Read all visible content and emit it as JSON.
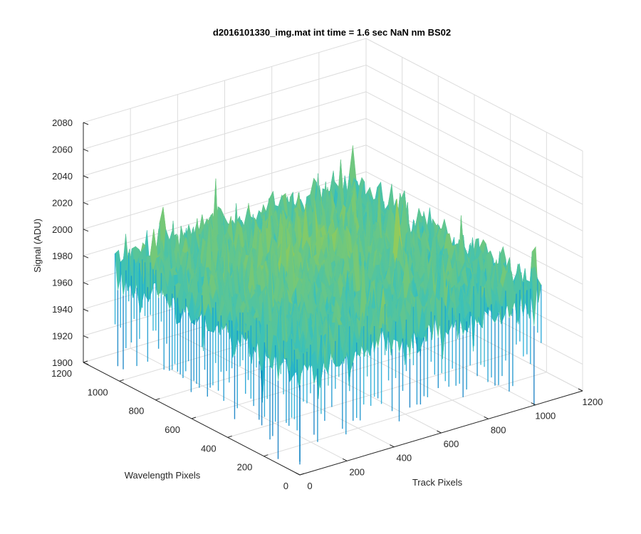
{
  "chart_data": {
    "type": "surface",
    "title": "d2016101330_img.mat int time = 1.6 sec  NaN nm BS02",
    "xlabel": "Track Pixels",
    "ylabel": "Wavelength Pixels",
    "zlabel": "Signal (ADU)",
    "xlim": [
      0,
      1200
    ],
    "ylim": [
      0,
      1200
    ],
    "zlim": [
      1900,
      2080
    ],
    "xticks": [
      "0",
      "200",
      "400",
      "600",
      "800",
      "1000",
      "1200"
    ],
    "yticks": [
      "0",
      "200",
      "400",
      "600",
      "800",
      "1000",
      "1200"
    ],
    "zticks": [
      "1900",
      "1920",
      "1940",
      "1960",
      "1980",
      "2000",
      "2020",
      "2040",
      "2060",
      "2080"
    ],
    "data_extent": {
      "x": [
        0,
        1024
      ],
      "y": [
        0,
        1024
      ]
    },
    "surface": {
      "mean_signal": 1985,
      "noise_range": [
        1920,
        2040
      ],
      "center_bump": 12,
      "colormap": [
        "#0072bd",
        "#14a6d6",
        "#3cc1b8",
        "#8ccb5e",
        "#e6c33a"
      ]
    },
    "grid": true,
    "view": "3d"
  }
}
